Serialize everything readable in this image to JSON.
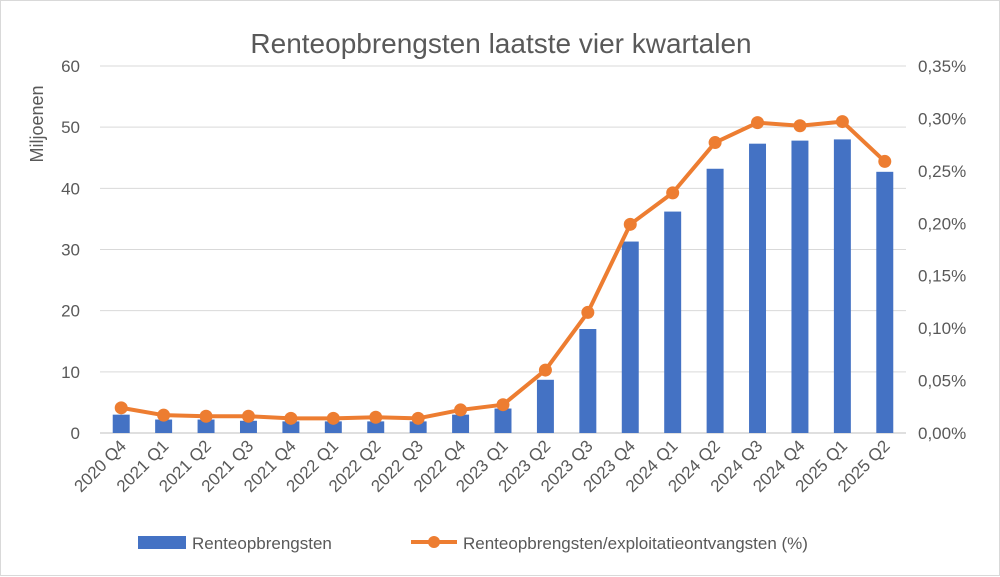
{
  "chart_data": {
    "type": "bar",
    "title": "Renteopbrengsten laatste vier kwartalen",
    "ylabel": "Miljoenen",
    "y2label": "",
    "categories": [
      "2020 Q4",
      "2021 Q1",
      "2021 Q2",
      "2021 Q3",
      "2021 Q4",
      "2022 Q1",
      "2022 Q2",
      "2022 Q3",
      "2022 Q4",
      "2023 Q1",
      "2023 Q2",
      "2023 Q3",
      "2023 Q4",
      "2024 Q1",
      "2024 Q2",
      "2024 Q3",
      "2024 Q4",
      "2025 Q1",
      "2025 Q2"
    ],
    "series": [
      {
        "name": "Renteopbrengsten",
        "type": "bar",
        "axis": "left",
        "color": "#4472C4",
        "values": [
          3.0,
          2.2,
          2.2,
          2.0,
          1.9,
          1.9,
          1.9,
          1.9,
          3.0,
          4.0,
          8.7,
          17.0,
          31.3,
          36.2,
          43.2,
          47.3,
          47.8,
          48.0,
          42.7
        ]
      },
      {
        "name": "Renteopbrengsten/exploitatieontvangsten (%)",
        "type": "line",
        "axis": "right",
        "color": "#ED7D31",
        "values": [
          0.024,
          0.017,
          0.016,
          0.016,
          0.014,
          0.014,
          0.015,
          0.014,
          0.022,
          0.027,
          0.06,
          0.115,
          0.199,
          0.229,
          0.277,
          0.296,
          0.293,
          0.297,
          0.259
        ]
      }
    ],
    "ylim": [
      0,
      60
    ],
    "y_ticks": [
      "0",
      "10",
      "20",
      "30",
      "40",
      "50",
      "60"
    ],
    "y2lim": [
      0,
      0.35
    ],
    "y2_ticks": [
      "0,00%",
      "0,05%",
      "0,10%",
      "0,15%",
      "0,20%",
      "0,25%",
      "0,30%",
      "0,35%"
    ],
    "grid": true,
    "legend_position": "bottom"
  }
}
